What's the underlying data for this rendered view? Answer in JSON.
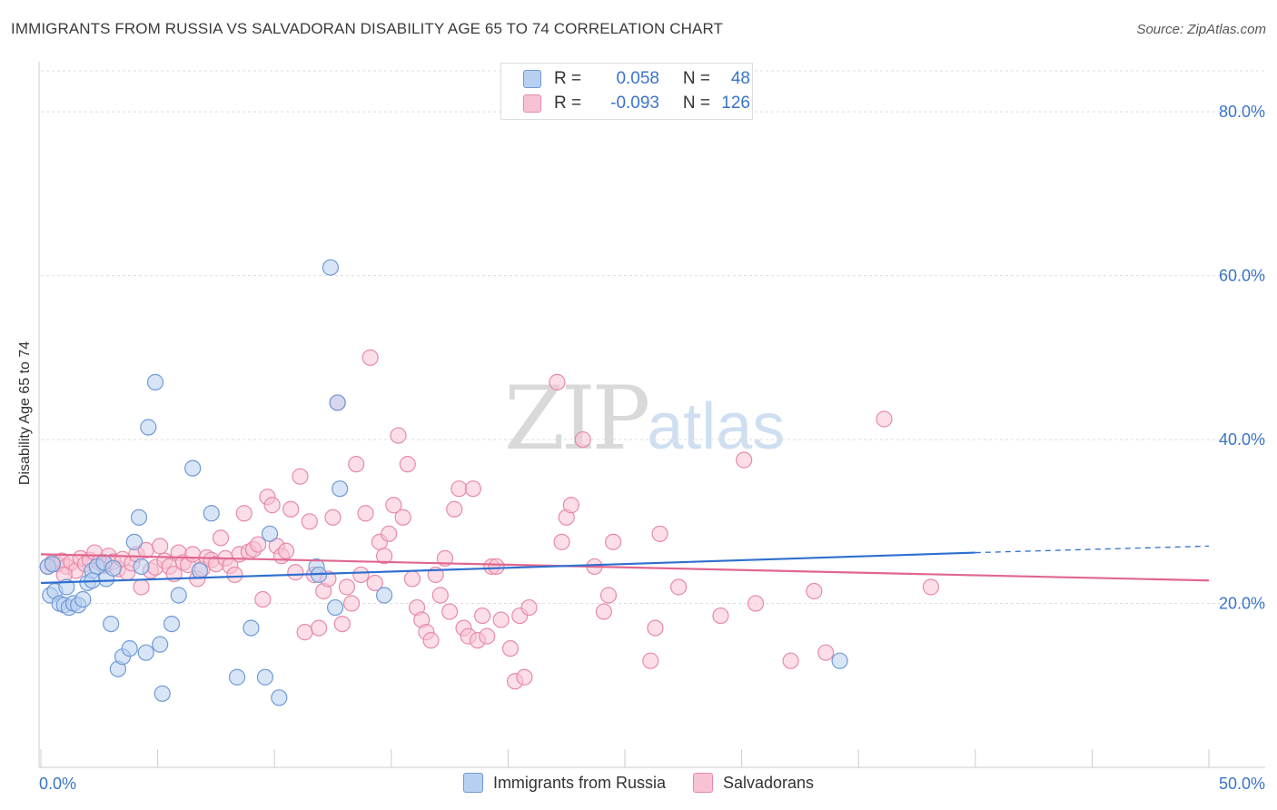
{
  "title": "IMMIGRANTS FROM RUSSIA VS SALVADORAN DISABILITY AGE 65 TO 74 CORRELATION CHART",
  "source": "Source: ZipAtlas.com",
  "watermark": {
    "zip": "ZIP",
    "atlas": "atlas"
  },
  "legend": {
    "rows": [
      {
        "r_label": "R =",
        "r_value": "0.058",
        "n_label": "N =",
        "n_value": "48"
      },
      {
        "r_label": "R =",
        "r_value": "-0.093",
        "n_label": "N =",
        "n_value": "126"
      }
    ]
  },
  "colors": {
    "russia_fill": "#b8d0f0",
    "russia_stroke": "#6f9ad6",
    "russia_line": "#2f6fcf",
    "salv_fill": "#f7c3d4",
    "salv_stroke": "#e88aa8",
    "salv_line": "#e0678f",
    "tick_label": "#3a74c9",
    "grid": "#dddddd"
  },
  "chart_data": {
    "type": "scatter",
    "xlabel": "",
    "ylabel": "Disability Age 65 to 74",
    "xlim": [
      0,
      50
    ],
    "ylim": [
      0,
      85
    ],
    "x_tick_labels": [
      "0.0%",
      "50.0%"
    ],
    "y_ticks": [
      20,
      40,
      60,
      80
    ],
    "y_tick_labels": [
      "20.0%",
      "40.0%",
      "60.0%",
      "80.0%"
    ],
    "grid": true,
    "legend_position": "top-center",
    "series": [
      {
        "name": "Immigrants from Russia",
        "r": 0.058,
        "n": 48,
        "trend": {
          "x": [
            0,
            40
          ],
          "y": [
            22.5,
            26.2
          ],
          "dashed_to": [
            50,
            27.0
          ]
        },
        "points": [
          [
            0.3,
            24.5
          ],
          [
            0.4,
            21.0
          ],
          [
            0.6,
            21.5
          ],
          [
            0.8,
            20.0
          ],
          [
            1.0,
            19.8
          ],
          [
            1.2,
            19.5
          ],
          [
            1.4,
            20.0
          ],
          [
            1.6,
            19.8
          ],
          [
            1.8,
            20.5
          ],
          [
            2.0,
            22.5
          ],
          [
            2.2,
            24.0
          ],
          [
            2.4,
            24.5
          ],
          [
            2.7,
            25.0
          ],
          [
            2.8,
            23.0
          ],
          [
            3.0,
            17.5
          ],
          [
            3.3,
            12.0
          ],
          [
            3.5,
            13.5
          ],
          [
            3.8,
            14.5
          ],
          [
            4.0,
            27.5
          ],
          [
            4.2,
            30.5
          ],
          [
            4.3,
            24.5
          ],
          [
            4.5,
            14.0
          ],
          [
            4.6,
            41.5
          ],
          [
            4.9,
            47.0
          ],
          [
            5.1,
            15.0
          ],
          [
            5.2,
            9.0
          ],
          [
            5.6,
            17.5
          ],
          [
            5.9,
            21.0
          ],
          [
            6.5,
            36.5
          ],
          [
            6.8,
            24.0
          ],
          [
            7.3,
            31.0
          ],
          [
            8.4,
            11.0
          ],
          [
            9.0,
            17.0
          ],
          [
            9.6,
            11.0
          ],
          [
            9.8,
            28.5
          ],
          [
            10.2,
            8.5
          ],
          [
            11.8,
            24.5
          ],
          [
            11.9,
            23.5
          ],
          [
            12.4,
            61.0
          ],
          [
            12.6,
            19.5
          ],
          [
            12.7,
            44.5
          ],
          [
            12.8,
            34.0
          ],
          [
            14.7,
            21.0
          ],
          [
            34.2,
            13.0
          ],
          [
            2.2,
            22.8
          ],
          [
            1.1,
            22.0
          ],
          [
            0.5,
            24.8
          ],
          [
            3.1,
            24.3
          ]
        ]
      },
      {
        "name": "Salvadorans",
        "r": -0.093,
        "n": 126,
        "trend": {
          "x": [
            0,
            50
          ],
          "y": [
            26.0,
            22.8
          ]
        },
        "points": [
          [
            0.3,
            24.5
          ],
          [
            0.5,
            25.0
          ],
          [
            0.7,
            24.8
          ],
          [
            0.9,
            25.2
          ],
          [
            1.1,
            24.5
          ],
          [
            1.3,
            25.0
          ],
          [
            1.5,
            24.0
          ],
          [
            1.7,
            25.5
          ],
          [
            1.9,
            24.8
          ],
          [
            2.1,
            25.3
          ],
          [
            2.3,
            26.2
          ],
          [
            2.5,
            25.0
          ],
          [
            2.7,
            24.6
          ],
          [
            2.9,
            25.8
          ],
          [
            3.1,
            25.1
          ],
          [
            3.3,
            24.2
          ],
          [
            3.5,
            25.4
          ],
          [
            3.7,
            23.8
          ],
          [
            3.9,
            24.9
          ],
          [
            4.1,
            26.0
          ],
          [
            4.3,
            22.0
          ],
          [
            4.5,
            26.5
          ],
          [
            4.7,
            24.0
          ],
          [
            4.9,
            24.4
          ],
          [
            5.1,
            27.0
          ],
          [
            5.3,
            25.2
          ],
          [
            5.5,
            24.5
          ],
          [
            5.7,
            23.6
          ],
          [
            5.9,
            26.2
          ],
          [
            6.1,
            25.0
          ],
          [
            6.3,
            24.7
          ],
          [
            6.5,
            26.0
          ],
          [
            6.7,
            23.0
          ],
          [
            6.9,
            24.2
          ],
          [
            7.1,
            25.6
          ],
          [
            7.3,
            25.3
          ],
          [
            7.5,
            24.8
          ],
          [
            7.7,
            28.0
          ],
          [
            7.9,
            25.5
          ],
          [
            8.1,
            24.6
          ],
          [
            8.3,
            23.5
          ],
          [
            8.5,
            26.0
          ],
          [
            8.7,
            31.0
          ],
          [
            8.9,
            26.3
          ],
          [
            9.1,
            26.6
          ],
          [
            9.3,
            27.2
          ],
          [
            9.5,
            20.5
          ],
          [
            9.7,
            33.0
          ],
          [
            9.9,
            32.0
          ],
          [
            10.1,
            27.0
          ],
          [
            10.3,
            25.8
          ],
          [
            10.5,
            26.4
          ],
          [
            10.7,
            31.5
          ],
          [
            10.9,
            23.8
          ],
          [
            11.1,
            35.5
          ],
          [
            11.3,
            16.5
          ],
          [
            11.5,
            30.0
          ],
          [
            11.7,
            23.5
          ],
          [
            11.9,
            17.0
          ],
          [
            12.1,
            21.5
          ],
          [
            12.3,
            23.0
          ],
          [
            12.5,
            30.5
          ],
          [
            12.7,
            44.5
          ],
          [
            12.9,
            17.5
          ],
          [
            13.1,
            22.0
          ],
          [
            13.3,
            20.0
          ],
          [
            13.5,
            37.0
          ],
          [
            13.7,
            23.5
          ],
          [
            13.9,
            31.0
          ],
          [
            14.1,
            50.0
          ],
          [
            14.3,
            22.5
          ],
          [
            14.5,
            27.5
          ],
          [
            14.7,
            25.8
          ],
          [
            14.9,
            28.5
          ],
          [
            15.1,
            32.0
          ],
          [
            15.3,
            40.5
          ],
          [
            15.5,
            30.5
          ],
          [
            15.7,
            37.0
          ],
          [
            15.9,
            23.0
          ],
          [
            16.1,
            19.5
          ],
          [
            16.3,
            18.0
          ],
          [
            16.5,
            16.5
          ],
          [
            16.7,
            15.5
          ],
          [
            16.9,
            23.5
          ],
          [
            17.1,
            21.0
          ],
          [
            17.3,
            25.5
          ],
          [
            17.5,
            19.0
          ],
          [
            17.7,
            31.5
          ],
          [
            17.9,
            34.0
          ],
          [
            18.1,
            17.0
          ],
          [
            18.3,
            16.0
          ],
          [
            18.5,
            34.0
          ],
          [
            18.7,
            15.5
          ],
          [
            18.9,
            18.5
          ],
          [
            19.1,
            16.0
          ],
          [
            19.3,
            24.5
          ],
          [
            19.5,
            24.5
          ],
          [
            19.7,
            18.0
          ],
          [
            20.1,
            14.5
          ],
          [
            20.3,
            10.5
          ],
          [
            20.5,
            18.5
          ],
          [
            20.7,
            11.0
          ],
          [
            20.9,
            19.5
          ],
          [
            22.1,
            47.0
          ],
          [
            22.3,
            27.5
          ],
          [
            22.5,
            30.5
          ],
          [
            22.7,
            32.0
          ],
          [
            23.2,
            40.0
          ],
          [
            23.7,
            24.5
          ],
          [
            24.1,
            19.0
          ],
          [
            24.3,
            21.0
          ],
          [
            24.5,
            27.5
          ],
          [
            26.1,
            13.0
          ],
          [
            26.3,
            17.0
          ],
          [
            26.5,
            28.5
          ],
          [
            27.3,
            22.0
          ],
          [
            29.1,
            18.5
          ],
          [
            30.1,
            37.5
          ],
          [
            30.6,
            20.0
          ],
          [
            32.1,
            13.0
          ],
          [
            33.1,
            21.5
          ],
          [
            33.6,
            14.0
          ],
          [
            36.1,
            42.5
          ],
          [
            38.1,
            22.0
          ],
          [
            1.0,
            23.5
          ]
        ]
      }
    ]
  },
  "bottom_legend": [
    "Immigrants from Russia",
    "Salvadorans"
  ]
}
